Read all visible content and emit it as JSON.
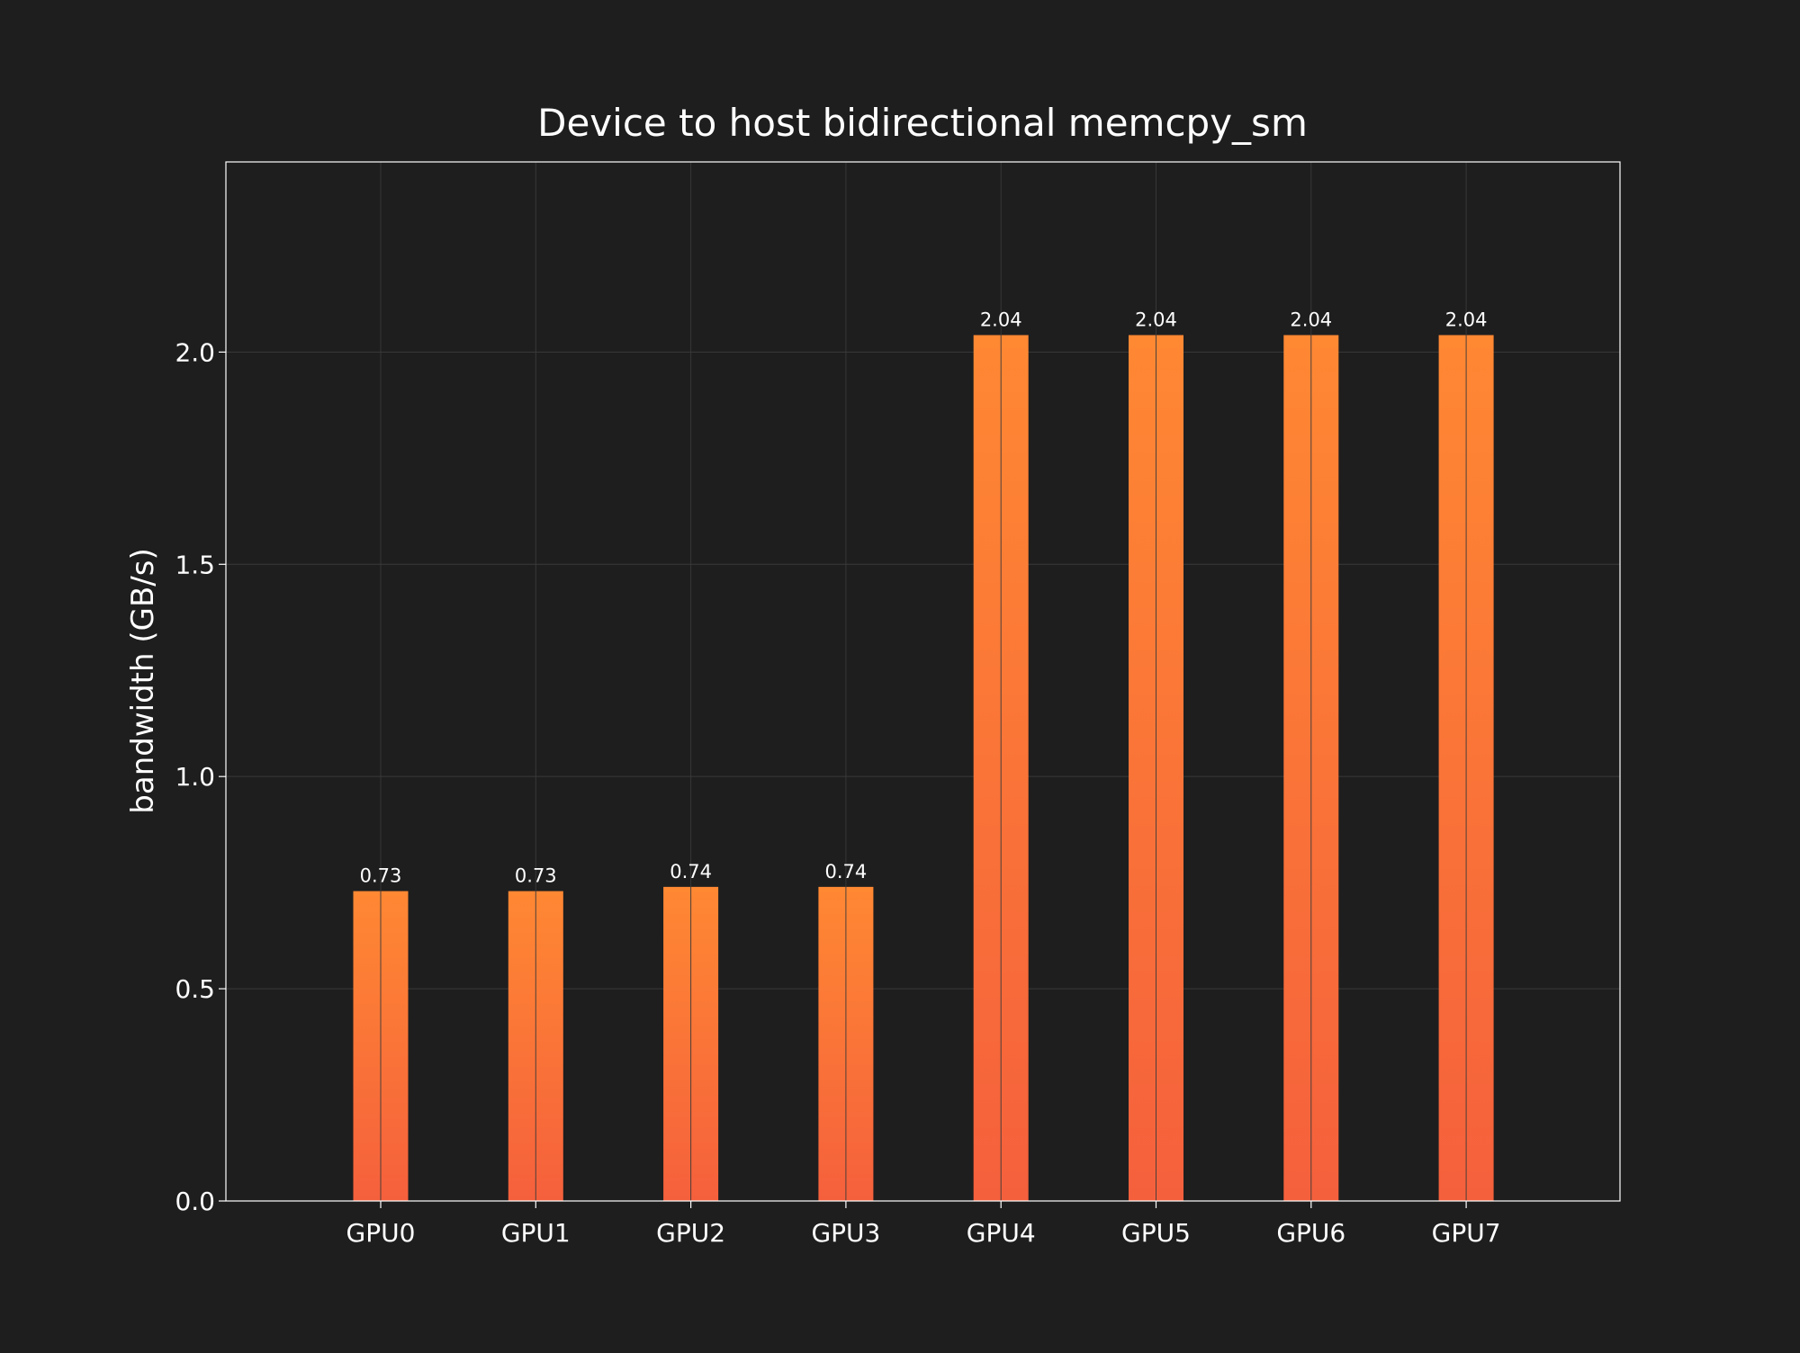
{
  "colors": {
    "background": "#1e1e1e",
    "text": "#ffffff",
    "grid": "#3a3a3a",
    "frame": "#ffffff",
    "bar_top": "#ff8833",
    "bar_bottom": "#f5603c"
  },
  "chart_data": {
    "type": "bar",
    "title": "Device to host bidirectional memcpy_sm",
    "xlabel": "",
    "ylabel": "bandwidth (GB/s)",
    "categories": [
      "GPU0",
      "GPU1",
      "GPU2",
      "GPU3",
      "GPU4",
      "GPU5",
      "GPU6",
      "GPU7"
    ],
    "values": [
      0.73,
      0.73,
      0.74,
      0.74,
      2.04,
      2.04,
      2.04,
      2.04
    ],
    "data_labels": [
      "0.73",
      "0.73",
      "0.74",
      "0.74",
      "2.04",
      "2.04",
      "2.04",
      "2.04"
    ],
    "ylim": [
      0,
      2.448
    ],
    "yticks": [
      0.0,
      0.5,
      1.0,
      1.5,
      2.0
    ],
    "ytick_labels": [
      "0.0",
      "0.5",
      "1.0",
      "1.5",
      "2.0"
    ],
    "grid": true,
    "legend": "none"
  }
}
